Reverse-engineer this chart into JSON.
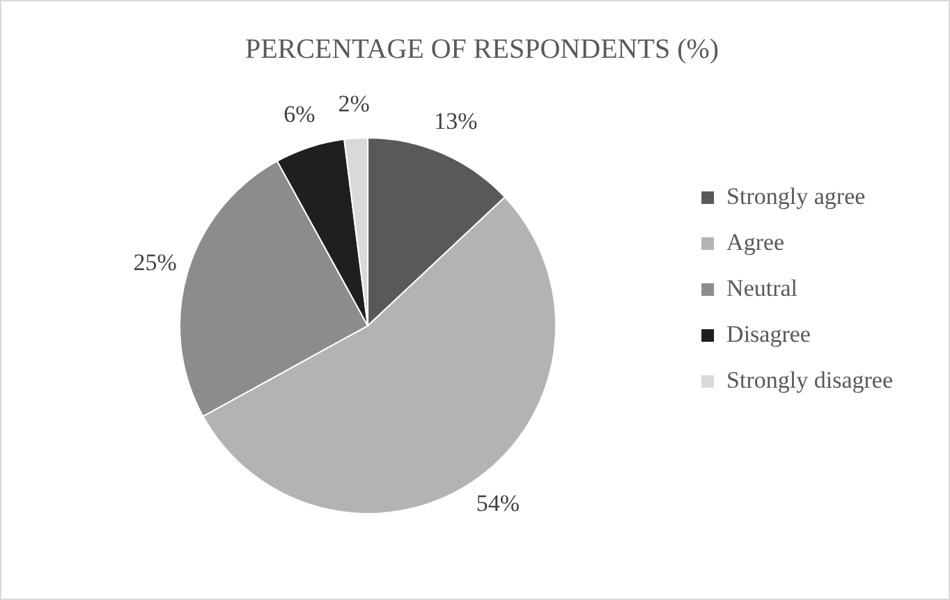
{
  "chart_data": {
    "type": "pie",
    "title": "PERCENTAGE OF RESPONDENTS (%)",
    "categories": [
      "Strongly agree",
      "Agree",
      "Neutral",
      "Disagree",
      "Strongly disagree"
    ],
    "values": [
      13,
      54,
      25,
      6,
      2
    ],
    "colors": [
      "#595959",
      "#b3b3b3",
      "#8c8c8c",
      "#1f1f1f",
      "#d9d9d9"
    ],
    "value_labels": [
      "13%",
      "54%",
      "25%",
      "6%",
      "2%"
    ],
    "legend": "right"
  }
}
